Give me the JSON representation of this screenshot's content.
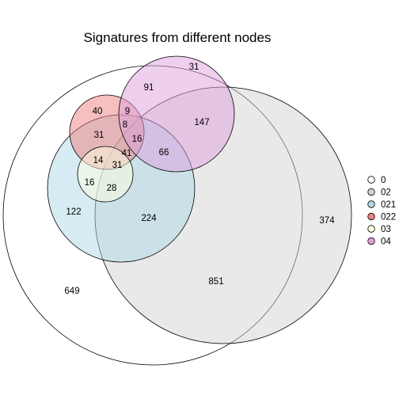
{
  "title": "Signatures from different nodes",
  "sets": [
    {
      "name": "0",
      "color": "#ffffff"
    },
    {
      "name": "02",
      "color": "#d3d3d3"
    },
    {
      "name": "021",
      "color": "#add8e6"
    },
    {
      "name": "022",
      "color": "#f08080"
    },
    {
      "name": "03",
      "color": "#ffffe0"
    },
    {
      "name": "04",
      "color": "#dda0dd"
    }
  ],
  "regions": [
    {
      "sets": [
        "0"
      ],
      "value": "649"
    },
    {
      "sets": [
        "0",
        "02"
      ],
      "value": "851"
    },
    {
      "sets": [
        "02"
      ],
      "value": "374"
    },
    {
      "sets": [
        "0",
        "021"
      ],
      "value": "122"
    },
    {
      "sets": [
        "0",
        "02",
        "021"
      ],
      "value": "224"
    },
    {
      "sets": [
        "0",
        "022"
      ],
      "value": "40"
    },
    {
      "sets": [
        "0",
        "021",
        "022"
      ],
      "value": "31"
    },
    {
      "sets": [
        "0",
        "022",
        "04"
      ],
      "value": "9"
    },
    {
      "sets": [
        "0",
        "021",
        "022",
        "04"
      ],
      "value": "8"
    },
    {
      "sets": [
        "0",
        "02",
        "021",
        "022",
        "04"
      ],
      "value": "16"
    },
    {
      "sets": [
        "0",
        "02",
        "021",
        "022"
      ],
      "value": "41"
    },
    {
      "sets": [
        "0",
        "021",
        "022",
        "03"
      ],
      "value": "14"
    },
    {
      "sets": [
        "0",
        "02",
        "021",
        "022",
        "03"
      ],
      "value": "31"
    },
    {
      "sets": [
        "0",
        "021",
        "03"
      ],
      "value": "16"
    },
    {
      "sets": [
        "0",
        "02",
        "021",
        "03"
      ],
      "value": "28"
    },
    {
      "sets": [
        "0",
        "02",
        "021",
        "04"
      ],
      "value": "66"
    },
    {
      "sets": [
        "0",
        "04"
      ],
      "value": "91"
    },
    {
      "sets": [
        "0",
        "02",
        "04"
      ],
      "value": "147"
    },
    {
      "sets": [
        "04"
      ],
      "value": "31"
    }
  ]
}
